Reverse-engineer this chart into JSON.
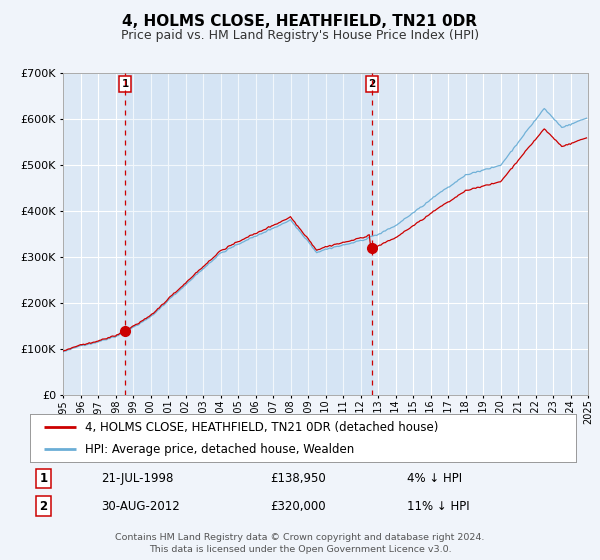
{
  "title": "4, HOLMS CLOSE, HEATHFIELD, TN21 0DR",
  "subtitle": "Price paid vs. HM Land Registry's House Price Index (HPI)",
  "background_color": "#f0f4fa",
  "plot_bg_color": "#dce8f5",
  "grid_color": "#ffffff",
  "hpi_color": "#6baed6",
  "price_color": "#cc0000",
  "ylim": [
    0,
    700000
  ],
  "yticks": [
    0,
    100000,
    200000,
    300000,
    400000,
    500000,
    600000,
    700000
  ],
  "year_start": 1995,
  "year_end": 2025,
  "sale1_year": 1998.55,
  "sale1_price": 138950,
  "sale1_label": "21-JUL-1998",
  "sale1_price_label": "£138,950",
  "sale1_hpi_diff": "4% ↓ HPI",
  "sale2_year": 2012.66,
  "sale2_price": 320000,
  "sale2_label": "30-AUG-2012",
  "sale2_price_label": "£320,000",
  "sale2_hpi_diff": "11% ↓ HPI",
  "legend_line1": "4, HOLMS CLOSE, HEATHFIELD, TN21 0DR (detached house)",
  "legend_line2": "HPI: Average price, detached house, Wealden",
  "footer1": "Contains HM Land Registry data © Crown copyright and database right 2024.",
  "footer2": "This data is licensed under the Open Government Licence v3.0.",
  "title_fontsize": 11,
  "subtitle_fontsize": 9,
  "tick_fontsize": 8,
  "legend_fontsize": 8.5,
  "annotation_fontsize": 8.5
}
